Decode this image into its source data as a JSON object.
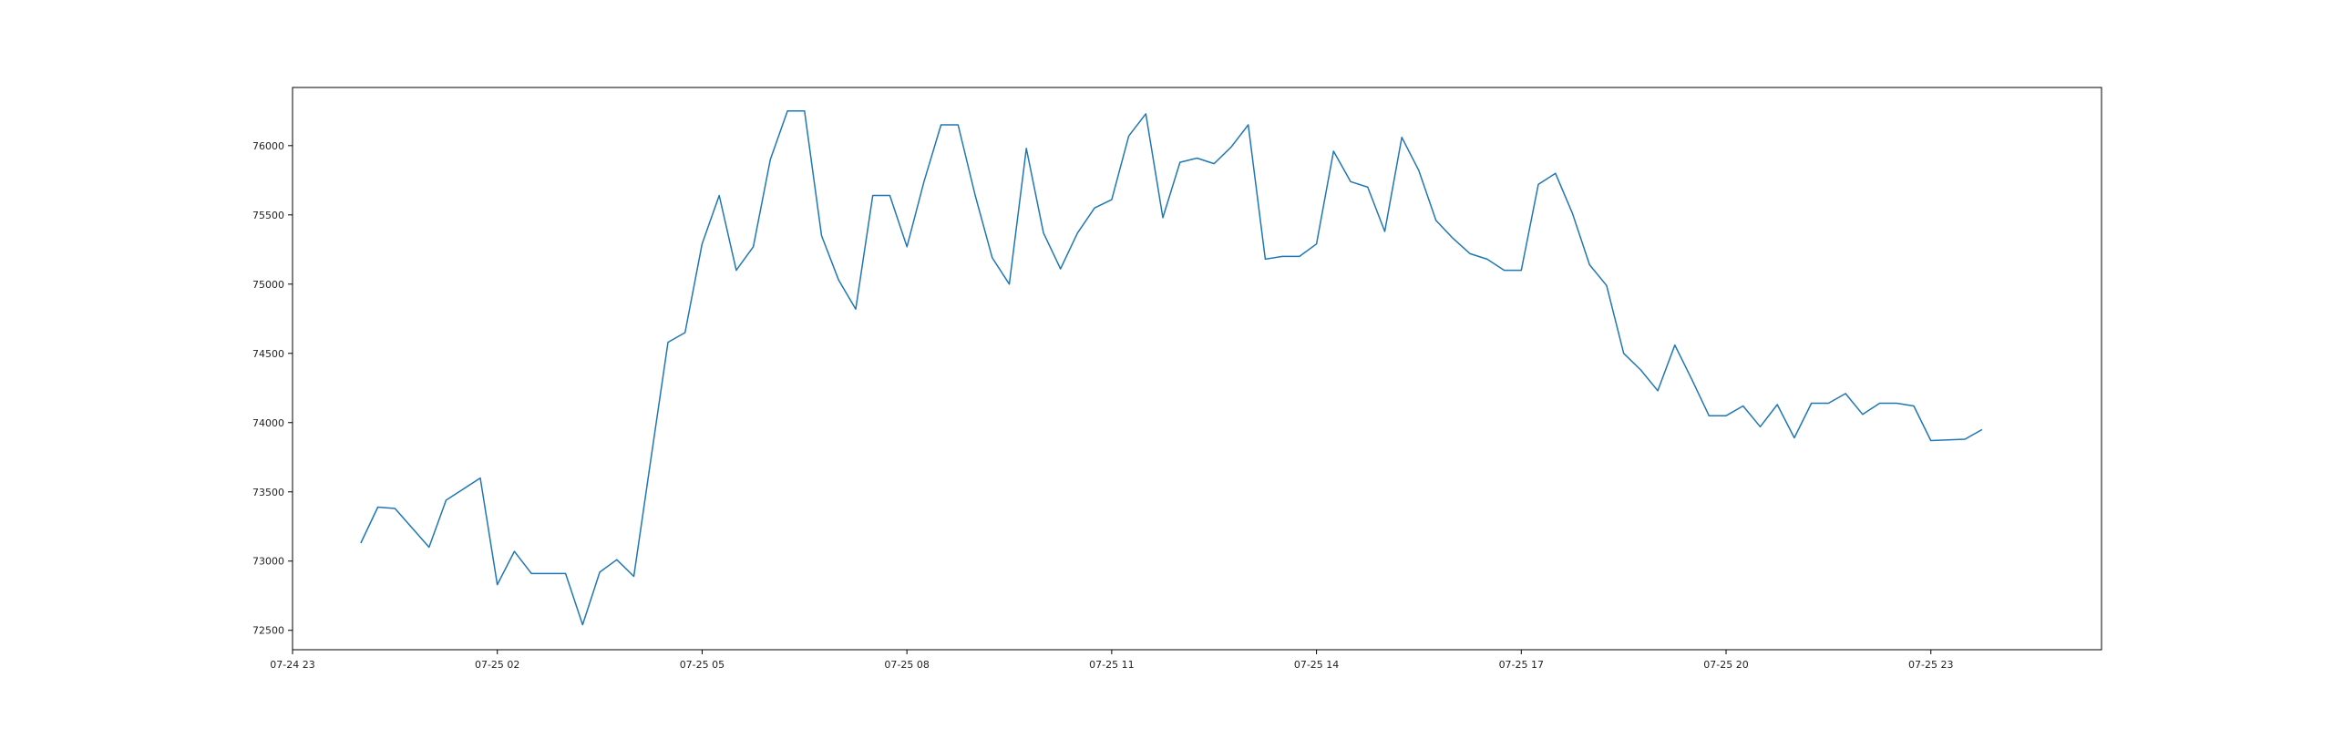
{
  "chart_data": {
    "type": "line",
    "title": "",
    "xlabel": "",
    "ylabel": "",
    "grid": false,
    "legend": "none",
    "series_color": "#1f77b4",
    "x_axis": {
      "unit": "hours from 07-24 23:00",
      "range": [
        0,
        26.5
      ],
      "ticks": [
        {
          "value": 0,
          "label": "07-24 23"
        },
        {
          "value": 3,
          "label": "07-25 02"
        },
        {
          "value": 6,
          "label": "07-25 05"
        },
        {
          "value": 9,
          "label": "07-25 08"
        },
        {
          "value": 12,
          "label": "07-25 11"
        },
        {
          "value": 15,
          "label": "07-25 14"
        },
        {
          "value": 18,
          "label": "07-25 17"
        },
        {
          "value": 21,
          "label": "07-25 20"
        },
        {
          "value": 24,
          "label": "07-25 23"
        }
      ]
    },
    "y_axis": {
      "range": [
        72360,
        76420
      ],
      "ticks": [
        {
          "value": 72500,
          "label": "72500"
        },
        {
          "value": 73000,
          "label": "73000"
        },
        {
          "value": 73500,
          "label": "73500"
        },
        {
          "value": 74000,
          "label": "74000"
        },
        {
          "value": 74500,
          "label": "74500"
        },
        {
          "value": 75000,
          "label": "75000"
        },
        {
          "value": 75500,
          "label": "75500"
        },
        {
          "value": 76000,
          "label": "76000"
        }
      ]
    },
    "series": [
      {
        "values": [
          [
            1.0,
            73130
          ],
          [
            1.25,
            73390
          ],
          [
            1.5,
            73380
          ],
          [
            2.0,
            73100
          ],
          [
            2.25,
            73440
          ],
          [
            2.5,
            73520
          ],
          [
            2.75,
            73600
          ],
          [
            3.0,
            72830
          ],
          [
            3.25,
            73070
          ],
          [
            3.5,
            72910
          ],
          [
            4.0,
            72910
          ],
          [
            4.25,
            72540
          ],
          [
            4.5,
            72920
          ],
          [
            4.75,
            73010
          ],
          [
            5.0,
            72890
          ],
          [
            5.25,
            73740
          ],
          [
            5.5,
            74580
          ],
          [
            5.75,
            74650
          ],
          [
            6.0,
            75290
          ],
          [
            6.25,
            75640
          ],
          [
            6.5,
            75100
          ],
          [
            6.75,
            75270
          ],
          [
            7.0,
            75900
          ],
          [
            7.25,
            76250
          ],
          [
            7.5,
            76250
          ],
          [
            7.75,
            75350
          ],
          [
            8.0,
            75030
          ],
          [
            8.25,
            74820
          ],
          [
            8.5,
            75640
          ],
          [
            8.75,
            75640
          ],
          [
            9.0,
            75270
          ],
          [
            9.25,
            75740
          ],
          [
            9.5,
            76150
          ],
          [
            9.75,
            76150
          ],
          [
            10.0,
            75640
          ],
          [
            10.25,
            75190
          ],
          [
            10.5,
            75000
          ],
          [
            10.75,
            75980
          ],
          [
            11.0,
            75370
          ],
          [
            11.25,
            75110
          ],
          [
            11.5,
            75370
          ],
          [
            11.75,
            75550
          ],
          [
            12.0,
            75610
          ],
          [
            12.25,
            76070
          ],
          [
            12.5,
            76230
          ],
          [
            12.75,
            75480
          ],
          [
            13.0,
            75880
          ],
          [
            13.25,
            75910
          ],
          [
            13.5,
            75870
          ],
          [
            13.75,
            75990
          ],
          [
            14.0,
            76150
          ],
          [
            14.25,
            75180
          ],
          [
            14.5,
            75200
          ],
          [
            14.75,
            75200
          ],
          [
            15.0,
            75290
          ],
          [
            15.25,
            75960
          ],
          [
            15.5,
            75740
          ],
          [
            15.75,
            75700
          ],
          [
            16.0,
            75380
          ],
          [
            16.25,
            76060
          ],
          [
            16.5,
            75820
          ],
          [
            16.75,
            75460
          ],
          [
            17.0,
            75330
          ],
          [
            17.25,
            75220
          ],
          [
            17.5,
            75180
          ],
          [
            17.75,
            75100
          ],
          [
            18.0,
            75100
          ],
          [
            18.25,
            75720
          ],
          [
            18.5,
            75800
          ],
          [
            18.75,
            75510
          ],
          [
            19.0,
            75140
          ],
          [
            19.25,
            74990
          ],
          [
            19.5,
            74500
          ],
          [
            19.75,
            74380
          ],
          [
            20.0,
            74230
          ],
          [
            20.25,
            74560
          ],
          [
            20.5,
            74310
          ],
          [
            20.75,
            74050
          ],
          [
            21.0,
            74050
          ],
          [
            21.25,
            74120
          ],
          [
            21.5,
            73970
          ],
          [
            21.75,
            74130
          ],
          [
            22.0,
            73890
          ],
          [
            22.25,
            74140
          ],
          [
            22.5,
            74140
          ],
          [
            22.75,
            74210
          ],
          [
            23.0,
            74060
          ],
          [
            23.25,
            74140
          ],
          [
            23.5,
            74140
          ],
          [
            23.75,
            74120
          ],
          [
            24.0,
            73870
          ],
          [
            24.5,
            73880
          ],
          [
            24.75,
            73950
          ]
        ]
      }
    ]
  }
}
